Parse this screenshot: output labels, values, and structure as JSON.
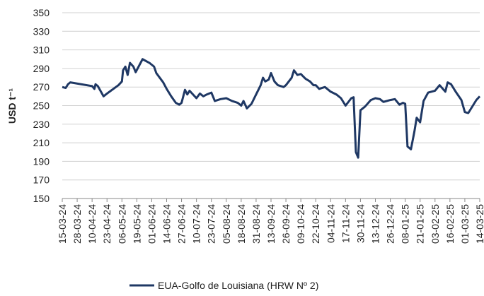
{
  "chart_data": {
    "type": "line",
    "ylabel": "USD t⁻¹",
    "ylim": [
      150,
      350
    ],
    "yticks": [
      150,
      170,
      190,
      210,
      230,
      250,
      270,
      290,
      310,
      330,
      350
    ],
    "grid": true,
    "xlim": [
      "15-03-24",
      "14-03-25"
    ],
    "xticks": [
      "15-03-24",
      "28-03-24",
      "10-04-24",
      "23-04-24",
      "06-05-24",
      "19-05-24",
      "01-06-24",
      "14-06-24",
      "27-06-24",
      "10-07-24",
      "23-07-24",
      "05-08-24",
      "18-08-24",
      "31-08-24",
      "13-09-24",
      "26-09-24",
      "09-10-24",
      "22-10-24",
      "04-11-24",
      "17-11-24",
      "30-11-24",
      "13-12-24",
      "26-12-24",
      "08-01-25",
      "21-01-25",
      "03-02-25",
      "16-02-25",
      "01-03-25",
      "14-03-25"
    ],
    "legend": "bottom",
    "x": [
      "15-03-24",
      "18-03-24",
      "20-03-24",
      "22-03-24",
      "10-04-24",
      "12-04-24",
      "13-04-24",
      "15-04-24",
      "20-04-24",
      "23-04-24",
      "03-05-24",
      "06-05-24",
      "07-05-24",
      "09-05-24",
      "11-05-24",
      "13-05-24",
      "16-05-24",
      "18-05-24",
      "21-05-24",
      "24-05-24",
      "30-05-24",
      "03-06-24",
      "05-06-24",
      "08-06-24",
      "11-06-24",
      "14-06-24",
      "18-06-24",
      "22-06-24",
      "25-06-24",
      "27-06-24",
      "30-06-24",
      "02-07-24",
      "04-07-24",
      "07-07-24",
      "10-07-24",
      "13-07-24",
      "16-07-24",
      "19-07-24",
      "23-07-24",
      "26-07-24",
      "31-07-24",
      "05-08-24",
      "10-08-24",
      "15-08-24",
      "18-08-24",
      "20-08-24",
      "23-08-24",
      "27-08-24",
      "31-08-24",
      "04-09-24",
      "06-09-24",
      "08-09-24",
      "11-09-24",
      "13-09-24",
      "16-09-24",
      "19-09-24",
      "24-09-24",
      "26-09-24",
      "01-10-24",
      "03-10-24",
      "06-10-24",
      "09-10-24",
      "13-10-24",
      "17-10-24",
      "20-10-24",
      "22-10-24",
      "25-10-24",
      "30-10-24",
      "04-11-24",
      "09-11-24",
      "13-11-24",
      "17-11-24",
      "22-11-24",
      "24-11-24",
      "26-11-24",
      "28-11-24",
      "30-11-24",
      "04-12-24",
      "09-12-24",
      "13-12-24",
      "17-12-24",
      "20-12-24",
      "26-12-24",
      "30-12-24",
      "03-01-25",
      "06-01-25",
      "08-01-25",
      "10-01-25",
      "13-01-25",
      "16-01-25",
      "18-01-25",
      "21-01-25",
      "24-01-25",
      "28-01-25",
      "03-02-25",
      "07-02-25",
      "12-02-25",
      "14-02-25",
      "17-02-25",
      "21-02-25",
      "26-02-25",
      "01-03-25",
      "04-03-25",
      "07-03-25",
      "11-03-25",
      "14-03-25"
    ],
    "series": [
      {
        "name": "EUA-Golfo de Louisiana (HRW Nº 2)",
        "color": "#1f3864",
        "values": [
          270,
          269,
          273,
          275,
          271,
          268,
          273,
          271,
          260,
          263,
          272,
          276,
          288,
          292,
          283,
          296,
          292,
          286,
          293,
          300,
          296,
          292,
          285,
          280,
          275,
          268,
          260,
          253,
          251,
          253,
          267,
          262,
          266,
          262,
          258,
          263,
          260,
          262,
          264,
          255,
          257,
          258,
          255,
          253,
          250,
          255,
          247,
          252,
          262,
          272,
          280,
          276,
          278,
          285,
          276,
          272,
          270,
          272,
          280,
          288,
          283,
          284,
          279,
          276,
          272,
          272,
          268,
          270,
          265,
          262,
          258,
          250,
          258,
          259,
          200,
          194,
          245,
          249,
          256,
          258,
          257,
          254,
          256,
          257,
          251,
          253,
          252,
          206,
          203,
          222,
          237,
          232,
          255,
          264,
          266,
          272,
          265,
          275,
          273,
          265,
          256,
          243,
          242,
          248,
          256,
          260
        ]
      }
    ]
  }
}
